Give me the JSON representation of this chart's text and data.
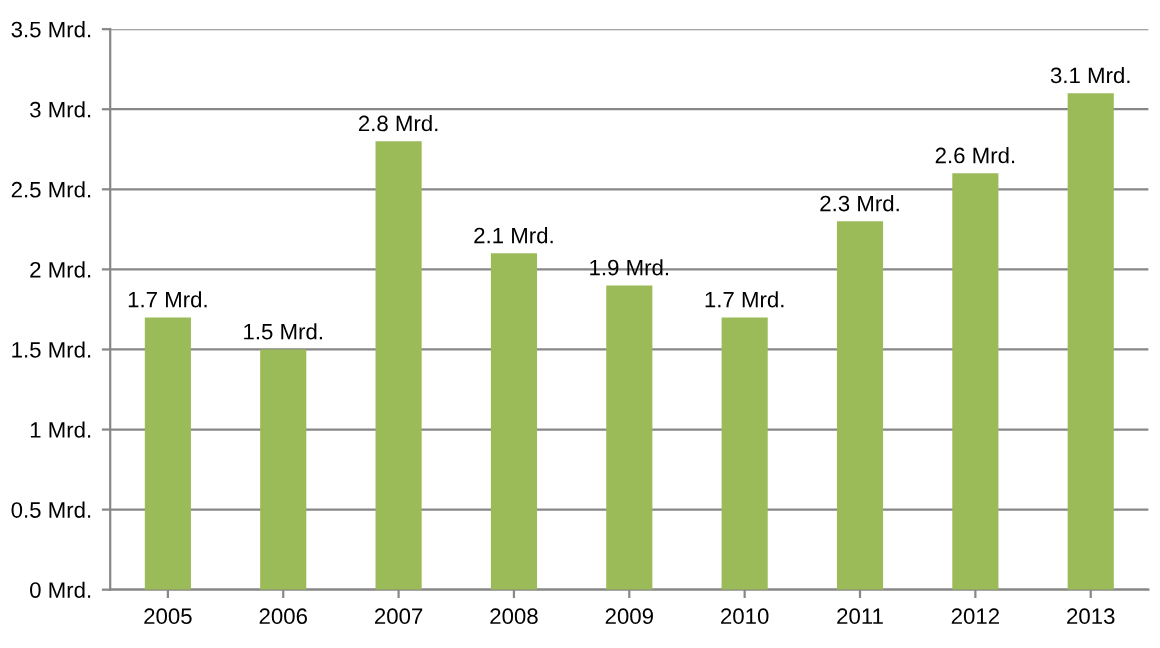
{
  "chart_data": {
    "type": "bar",
    "categories": [
      "2005",
      "2006",
      "2007",
      "2008",
      "2009",
      "2010",
      "2011",
      "2012",
      "2013"
    ],
    "values": [
      1.7,
      1.5,
      2.8,
      2.1,
      1.9,
      1.7,
      2.3,
      2.6,
      3.1
    ],
    "value_labels": [
      "1.7 Mrd.",
      "1.5 Mrd.",
      "2.8 Mrd.",
      "2.1 Mrd.",
      "1.9 Mrd.",
      "1.7 Mrd.",
      "2.3 Mrd.",
      "2.6 Mrd.",
      "3.1 Mrd."
    ],
    "color": "#9bbb59",
    "ylim": [
      0,
      3.5
    ],
    "yticks": [
      {
        "value": 0,
        "label": "0 Mrd."
      },
      {
        "value": 0.5,
        "label": "0.5 Mrd."
      },
      {
        "value": 1,
        "label": "1 Mrd."
      },
      {
        "value": 1.5,
        "label": "1.5 Mrd."
      },
      {
        "value": 2,
        "label": "2 Mrd."
      },
      {
        "value": 2.5,
        "label": "2.5 Mrd."
      },
      {
        "value": 3,
        "label": "3 Mrd."
      },
      {
        "value": 3.5,
        "label": "3.5 Mrd."
      }
    ],
    "grid": "y"
  }
}
